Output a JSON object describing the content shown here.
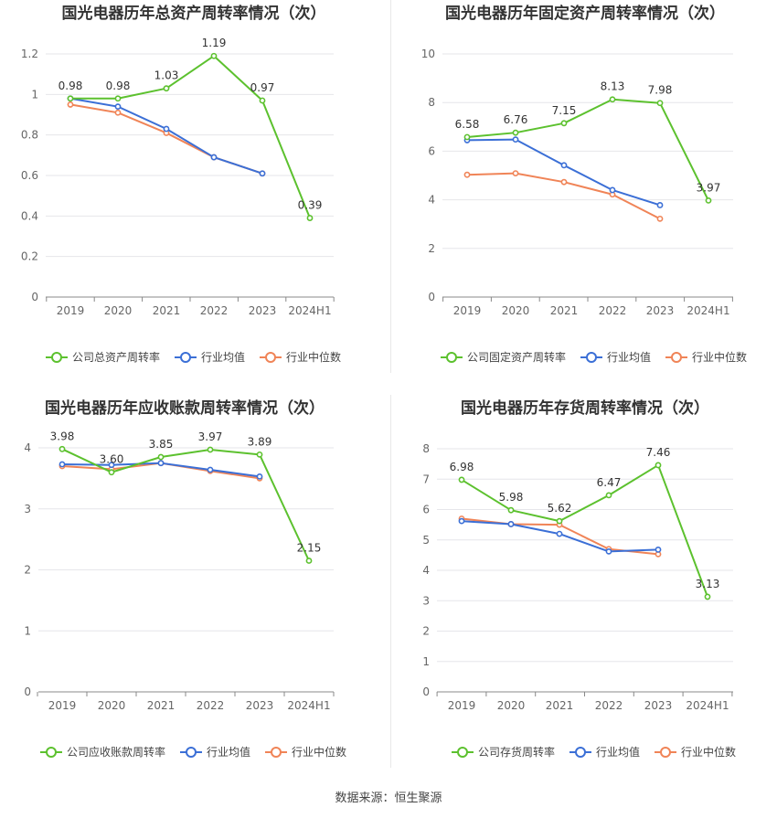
{
  "source": "数据来源：恒生聚源",
  "legend": {
    "industry_avg": "行业均值",
    "industry_median": "行业中位数"
  },
  "colors": {
    "company": "#5cc12e",
    "avg": "#3b6fd6",
    "median": "#f08457",
    "grid": "#e6e6ea",
    "axis": "#666666",
    "title": "#333333"
  },
  "chart_data": [
    {
      "type": "line",
      "title": "国光电器历年总资产周转率情况（次）",
      "categories": [
        "2019",
        "2020",
        "2021",
        "2022",
        "2023",
        "2024H1"
      ],
      "ylim": [
        0,
        1.2
      ],
      "yticks": [
        "0",
        "0.2",
        "0.4",
        "0.6",
        "0.8",
        "1",
        "1.2"
      ],
      "ytick_values": [
        0,
        0.2,
        0.4,
        0.6,
        0.8,
        1.0,
        1.2
      ],
      "series": [
        {
          "name": "公司总资产周转率",
          "key": "company",
          "values": [
            0.98,
            0.98,
            1.03,
            1.19,
            0.97,
            0.39
          ],
          "labels": [
            "0.98",
            "0.98",
            "1.03",
            "1.19",
            "0.97",
            "0.39"
          ]
        },
        {
          "name": "行业均值",
          "key": "avg",
          "values": [
            0.98,
            0.94,
            0.83,
            0.69,
            0.61,
            null
          ]
        },
        {
          "name": "行业中位数",
          "key": "median",
          "values": [
            0.95,
            0.91,
            0.81,
            0.69,
            0.61,
            null
          ]
        }
      ]
    },
    {
      "type": "line",
      "title": "国光电器历年固定资产周转率情况（次）",
      "categories": [
        "2019",
        "2020",
        "2021",
        "2022",
        "2023",
        "2024H1"
      ],
      "ylim": [
        0,
        10
      ],
      "yticks": [
        "0",
        "2",
        "4",
        "6",
        "8",
        "10"
      ],
      "ytick_values": [
        0,
        2,
        4,
        6,
        8,
        10
      ],
      "series": [
        {
          "name": "公司固定资产周转率",
          "key": "company",
          "values": [
            6.58,
            6.76,
            7.15,
            8.13,
            7.98,
            3.97
          ],
          "labels": [
            "6.58",
            "6.76",
            "7.15",
            "8.13",
            "7.98",
            "3.97"
          ]
        },
        {
          "name": "行业均值",
          "key": "avg",
          "values": [
            6.45,
            6.48,
            5.42,
            4.4,
            3.78,
            null
          ]
        },
        {
          "name": "行业中位数",
          "key": "median",
          "values": [
            5.03,
            5.09,
            4.73,
            4.22,
            3.22,
            null
          ]
        }
      ]
    },
    {
      "type": "line",
      "title": "国光电器历年应收账款周转率情况（次）",
      "categories": [
        "2019",
        "2020",
        "2021",
        "2022",
        "2023",
        "2024H1"
      ],
      "ylim": [
        0,
        4
      ],
      "yticks": [
        "0",
        "1",
        "2",
        "3",
        "4"
      ],
      "ytick_values": [
        0,
        1,
        2,
        3,
        4
      ],
      "series": [
        {
          "name": "公司应收账款周转率",
          "key": "company",
          "values": [
            3.98,
            3.6,
            3.85,
            3.97,
            3.89,
            2.15
          ],
          "labels": [
            "3.98",
            "3.60",
            "3.85",
            "3.97",
            "3.89",
            "2.15"
          ]
        },
        {
          "name": "行业均值",
          "key": "avg",
          "values": [
            3.73,
            3.72,
            3.75,
            3.64,
            3.53,
            null
          ]
        },
        {
          "name": "行业中位数",
          "key": "median",
          "values": [
            3.7,
            3.65,
            3.75,
            3.62,
            3.5,
            null
          ]
        }
      ]
    },
    {
      "type": "line",
      "title": "国光电器历年存货周转率情况（次）",
      "categories": [
        "2019",
        "2020",
        "2021",
        "2022",
        "2023",
        "2024H1"
      ],
      "ylim": [
        0,
        8
      ],
      "yticks": [
        "0",
        "1",
        "2",
        "3",
        "4",
        "5",
        "6",
        "7",
        "8"
      ],
      "ytick_values": [
        0,
        1,
        2,
        3,
        4,
        5,
        6,
        7,
        8
      ],
      "series": [
        {
          "name": "公司存货周转率",
          "key": "company",
          "values": [
            6.98,
            5.98,
            5.62,
            6.47,
            7.46,
            3.13
          ],
          "labels": [
            "6.98",
            "5.98",
            "5.62",
            "6.47",
            "7.46",
            "3.13"
          ]
        },
        {
          "name": "行业均值",
          "key": "avg",
          "values": [
            5.62,
            5.52,
            5.2,
            4.62,
            4.68,
            null
          ]
        },
        {
          "name": "行业中位数",
          "key": "median",
          "values": [
            5.7,
            5.52,
            5.5,
            4.7,
            4.53,
            null
          ]
        }
      ]
    }
  ]
}
